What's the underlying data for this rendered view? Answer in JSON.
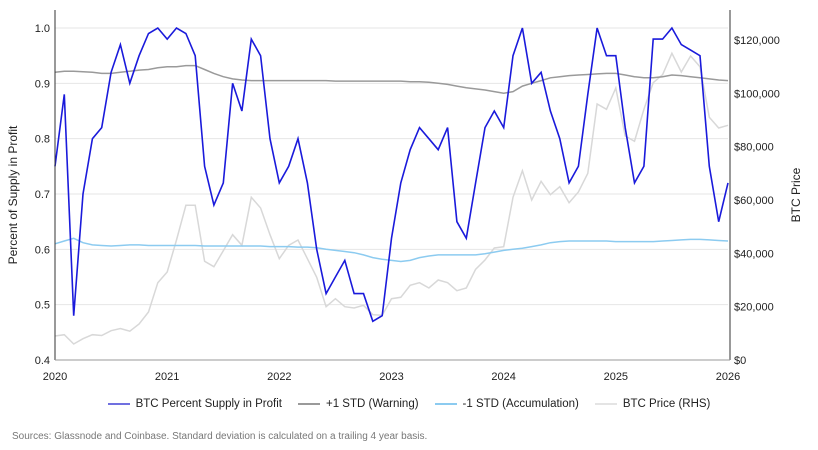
{
  "chart_data": {
    "type": "line",
    "x": [
      "2020-01",
      "2020-02",
      "2020-03",
      "2020-04",
      "2020-05",
      "2020-06",
      "2020-07",
      "2020-08",
      "2020-09",
      "2020-10",
      "2020-11",
      "2020-12",
      "2021-01",
      "2021-02",
      "2021-03",
      "2021-04",
      "2021-05",
      "2021-06",
      "2021-07",
      "2021-08",
      "2021-09",
      "2021-10",
      "2021-11",
      "2021-12",
      "2022-01",
      "2022-02",
      "2022-03",
      "2022-04",
      "2022-05",
      "2022-06",
      "2022-07",
      "2022-08",
      "2022-09",
      "2022-10",
      "2022-11",
      "2022-12",
      "2023-01",
      "2023-02",
      "2023-03",
      "2023-04",
      "2023-05",
      "2023-06",
      "2023-07",
      "2023-08",
      "2023-09",
      "2023-10",
      "2023-11",
      "2023-12",
      "2024-01",
      "2024-02",
      "2024-03",
      "2024-04",
      "2024-05",
      "2024-06",
      "2024-07",
      "2024-08",
      "2024-09",
      "2024-10",
      "2024-11",
      "2024-12",
      "2025-01",
      "2025-02",
      "2025-03",
      "2025-04",
      "2025-05",
      "2025-06",
      "2025-07",
      "2025-08",
      "2025-09",
      "2025-10",
      "2025-11",
      "2025-12",
      "2026-01"
    ],
    "xticks": [
      "2020",
      "2021",
      "2022",
      "2023",
      "2024",
      "2025",
      "2026"
    ],
    "ylabel": "Percent of Supply in Profit",
    "yticks": [
      "0.4",
      "0.5",
      "0.6",
      "0.7",
      "0.8",
      "0.9",
      "1.0"
    ],
    "ylim": [
      0.4,
      1.0
    ],
    "y2label": "BTC Price",
    "y2ticks": [
      "$0",
      "$20,000",
      "$40,000",
      "$60,000",
      "$80,000",
      "$100,000",
      "$120,000"
    ],
    "y2lim": [
      0,
      120000
    ],
    "grid": true,
    "legend_position": "bottom",
    "series": [
      {
        "name": "BTC Percent Supply in Profit",
        "axis": "left",
        "color": "#1a1adb",
        "values": [
          0.75,
          0.88,
          0.48,
          0.7,
          0.8,
          0.82,
          0.92,
          0.97,
          0.9,
          0.95,
          0.99,
          1.0,
          0.98,
          1.0,
          0.99,
          0.95,
          0.75,
          0.68,
          0.72,
          0.9,
          0.85,
          0.98,
          0.95,
          0.8,
          0.72,
          0.75,
          0.8,
          0.72,
          0.6,
          0.52,
          0.55,
          0.58,
          0.52,
          0.52,
          0.47,
          0.48,
          0.62,
          0.72,
          0.78,
          0.82,
          0.8,
          0.78,
          0.82,
          0.65,
          0.62,
          0.72,
          0.82,
          0.85,
          0.82,
          0.95,
          1.0,
          0.9,
          0.92,
          0.85,
          0.8,
          0.72,
          0.75,
          0.88,
          1.0,
          0.95,
          0.95,
          0.82,
          0.72,
          0.75,
          0.98,
          0.98,
          1.0,
          0.97,
          0.96,
          0.95,
          0.75,
          0.65,
          0.72
        ]
      },
      {
        "name": "+1 STD (Warning)",
        "axis": "left",
        "color": "#9a9a9a",
        "values": [
          0.92,
          0.922,
          0.922,
          0.921,
          0.92,
          0.918,
          0.918,
          0.92,
          0.922,
          0.924,
          0.925,
          0.928,
          0.93,
          0.93,
          0.932,
          0.932,
          0.925,
          0.918,
          0.912,
          0.908,
          0.906,
          0.905,
          0.905,
          0.905,
          0.905,
          0.905,
          0.905,
          0.905,
          0.905,
          0.905,
          0.904,
          0.904,
          0.904,
          0.904,
          0.904,
          0.904,
          0.904,
          0.904,
          0.903,
          0.903,
          0.902,
          0.9,
          0.898,
          0.895,
          0.892,
          0.89,
          0.888,
          0.885,
          0.882,
          0.885,
          0.895,
          0.9,
          0.905,
          0.91,
          0.912,
          0.914,
          0.915,
          0.916,
          0.917,
          0.918,
          0.918,
          0.915,
          0.912,
          0.91,
          0.91,
          0.912,
          0.915,
          0.914,
          0.912,
          0.91,
          0.908,
          0.906,
          0.905
        ]
      },
      {
        "name": "-1 STD (Accumulation)",
        "axis": "left",
        "color": "#8ccbf0",
        "values": [
          0.61,
          0.615,
          0.62,
          0.612,
          0.608,
          0.607,
          0.606,
          0.607,
          0.608,
          0.608,
          0.607,
          0.607,
          0.607,
          0.607,
          0.607,
          0.607,
          0.606,
          0.606,
          0.606,
          0.606,
          0.606,
          0.606,
          0.606,
          0.605,
          0.605,
          0.605,
          0.604,
          0.604,
          0.603,
          0.6,
          0.598,
          0.596,
          0.594,
          0.59,
          0.585,
          0.582,
          0.58,
          0.578,
          0.58,
          0.585,
          0.588,
          0.59,
          0.59,
          0.59,
          0.59,
          0.59,
          0.592,
          0.595,
          0.598,
          0.6,
          0.602,
          0.605,
          0.608,
          0.612,
          0.614,
          0.615,
          0.615,
          0.615,
          0.615,
          0.615,
          0.614,
          0.614,
          0.614,
          0.614,
          0.614,
          0.615,
          0.616,
          0.617,
          0.618,
          0.618,
          0.617,
          0.616,
          0.615
        ]
      },
      {
        "name": "BTC Price (RHS)",
        "axis": "right",
        "color": "#d8d8d8",
        "values": [
          9000,
          9500,
          6000,
          8000,
          9500,
          9200,
          11000,
          11800,
          10800,
          13500,
          18000,
          29000,
          33000,
          45000,
          58000,
          58000,
          37000,
          35000,
          41000,
          47000,
          43000,
          61000,
          57000,
          47000,
          38000,
          43000,
          45000,
          38000,
          31000,
          20000,
          23000,
          20000,
          19500,
          20500,
          17000,
          16800,
          23000,
          23500,
          28000,
          29000,
          27000,
          30000,
          29000,
          26000,
          27000,
          34000,
          37500,
          42000,
          42500,
          61000,
          71000,
          60000,
          67000,
          62000,
          65000,
          59000,
          63000,
          70000,
          96000,
          94000,
          102000,
          84000,
          82000,
          94000,
          104000,
          107000,
          115000,
          108000,
          114000,
          110000,
          91000,
          87000,
          88000
        ]
      }
    ]
  },
  "sources": "Sources: Glassnode and Coinbase. Standard deviation is calculated on a trailing 4 year basis."
}
